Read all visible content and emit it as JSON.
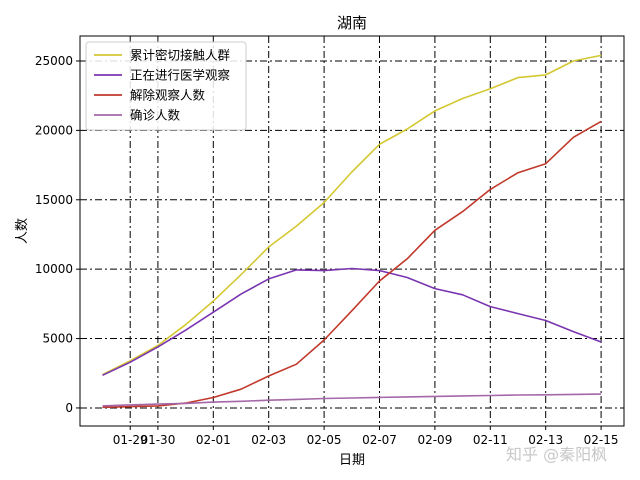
{
  "chart_data": {
    "type": "line",
    "title": "湖南",
    "xlabel": "日期",
    "ylabel": "人数",
    "x": [
      "01-28",
      "01-29",
      "01-30",
      "01-31",
      "02-01",
      "02-02",
      "02-03",
      "02-04",
      "02-05",
      "02-06",
      "02-07",
      "02-08",
      "02-09",
      "02-10",
      "02-11",
      "02-12",
      "02-13",
      "02-14",
      "02-15"
    ],
    "xticks": [
      "01-29",
      "01-30",
      "02-01",
      "02-03",
      "02-05",
      "02-07",
      "02-09",
      "02-11",
      "02-13",
      "02-15"
    ],
    "yticks": [
      0,
      5000,
      10000,
      15000,
      20000,
      25000
    ],
    "ylim": [
      -1300,
      26800
    ],
    "grid": true,
    "legend_position": "top-left",
    "series": [
      {
        "name": "累计密切接触人群",
        "color": "#d4c832",
        "values": [
          2400,
          3400,
          4500,
          6000,
          7700,
          9600,
          11600,
          13100,
          14800,
          17000,
          19000,
          20100,
          21400,
          22300,
          23000,
          23800,
          24000,
          25000,
          25400
        ]
      },
      {
        "name": "正在进行医学观察",
        "color": "#7a35b0",
        "values": [
          2350,
          3300,
          4400,
          5600,
          6900,
          8200,
          9300,
          9950,
          9900,
          10050,
          9900,
          9400,
          8600,
          8150,
          7300,
          6800,
          6300,
          5500,
          4750
        ]
      },
      {
        "name": "解除观察人数",
        "color": "#c0392b",
        "values": [
          50,
          100,
          150,
          350,
          750,
          1350,
          2300,
          3150,
          4900,
          7000,
          9150,
          10750,
          12800,
          14150,
          15750,
          16950,
          17600,
          19500,
          20650
        ]
      },
      {
        "name": "确诊人数",
        "color": "#a467a8",
        "values": [
          150,
          220,
          280,
          330,
          420,
          480,
          560,
          620,
          680,
          720,
          760,
          800,
          830,
          870,
          900,
          930,
          950,
          980,
          1000
        ]
      }
    ]
  },
  "watermark": "知乎 @秦阳枫"
}
